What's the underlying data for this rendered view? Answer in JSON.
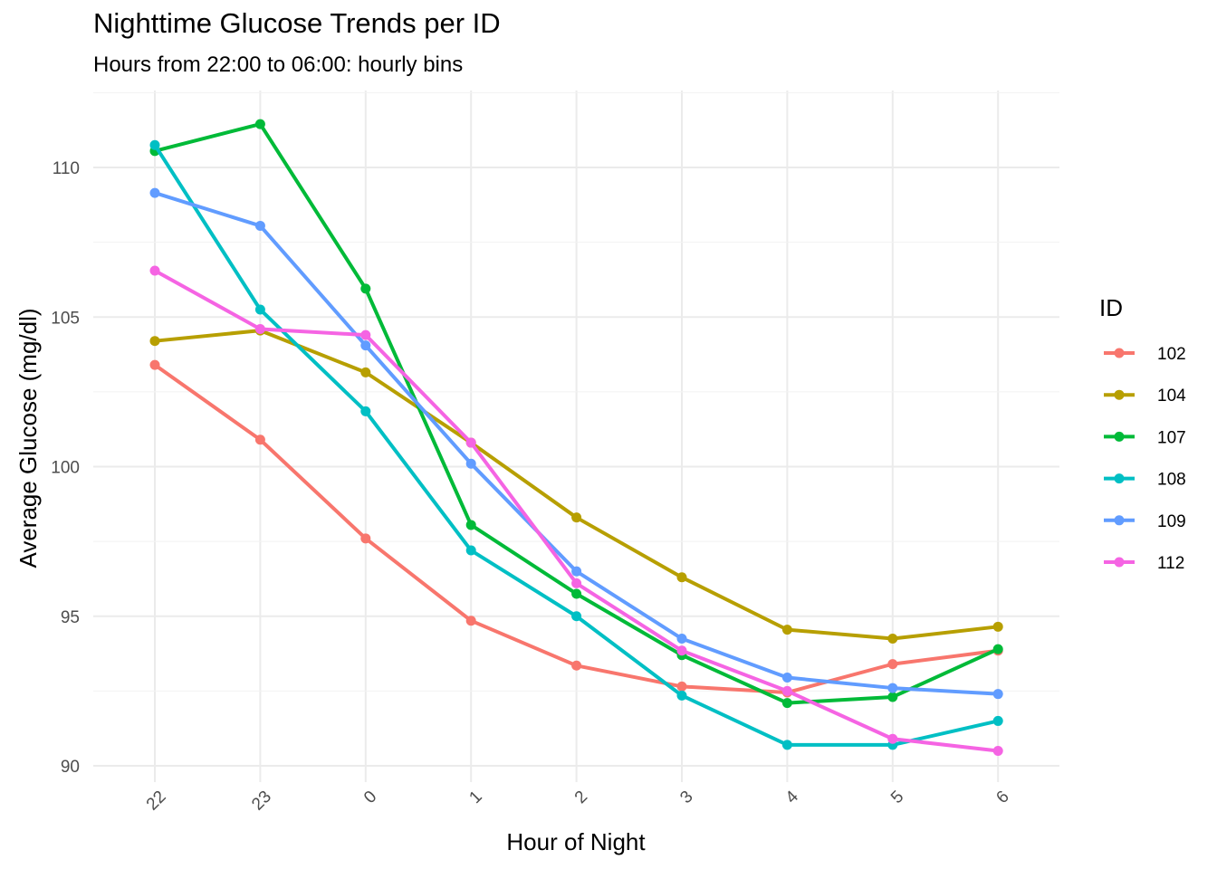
{
  "chart_data": {
    "type": "line",
    "title": "Nighttime Glucose Trends per ID",
    "subtitle": "Hours from 22:00 to 06:00: hourly bins",
    "xlabel": "Hour of Night",
    "ylabel": "Average Glucose (mg/dl)",
    "categories": [
      "22",
      "23",
      "0",
      "1",
      "2",
      "3",
      "4",
      "5",
      "6"
    ],
    "ylim": [
      89.55,
      111.95
    ],
    "y_ticks": [
      90,
      95,
      100,
      105,
      110
    ],
    "y_tick_labels": [
      "90",
      "95",
      "100",
      "105",
      "110"
    ],
    "grid": true,
    "legend": {
      "title": "ID",
      "position": "right"
    },
    "series": [
      {
        "name": "102",
        "color": "#F8766D",
        "values": [
          103.4,
          100.9,
          97.6,
          94.85,
          93.35,
          92.65,
          92.45,
          93.4,
          93.85
        ]
      },
      {
        "name": "104",
        "color": "#B79F00",
        "values": [
          104.2,
          104.55,
          103.15,
          100.8,
          98.3,
          96.3,
          94.55,
          94.25,
          94.65
        ]
      },
      {
        "name": "107",
        "color": "#00BA38",
        "values": [
          110.55,
          111.45,
          105.95,
          98.05,
          95.75,
          93.7,
          92.1,
          92.3,
          93.9
        ]
      },
      {
        "name": "108",
        "color": "#00BFC4",
        "values": [
          110.75,
          105.25,
          101.85,
          97.2,
          95.0,
          92.35,
          90.7,
          90.7,
          91.5
        ]
      },
      {
        "name": "109",
        "color": "#619CFF",
        "values": [
          109.15,
          108.05,
          104.05,
          100.1,
          96.5,
          94.25,
          92.95,
          92.6,
          92.4
        ]
      },
      {
        "name": "112",
        "color": "#F564E3",
        "values": [
          106.55,
          104.6,
          104.4,
          100.8,
          96.1,
          93.85,
          92.5,
          90.9,
          90.5
        ]
      }
    ]
  }
}
